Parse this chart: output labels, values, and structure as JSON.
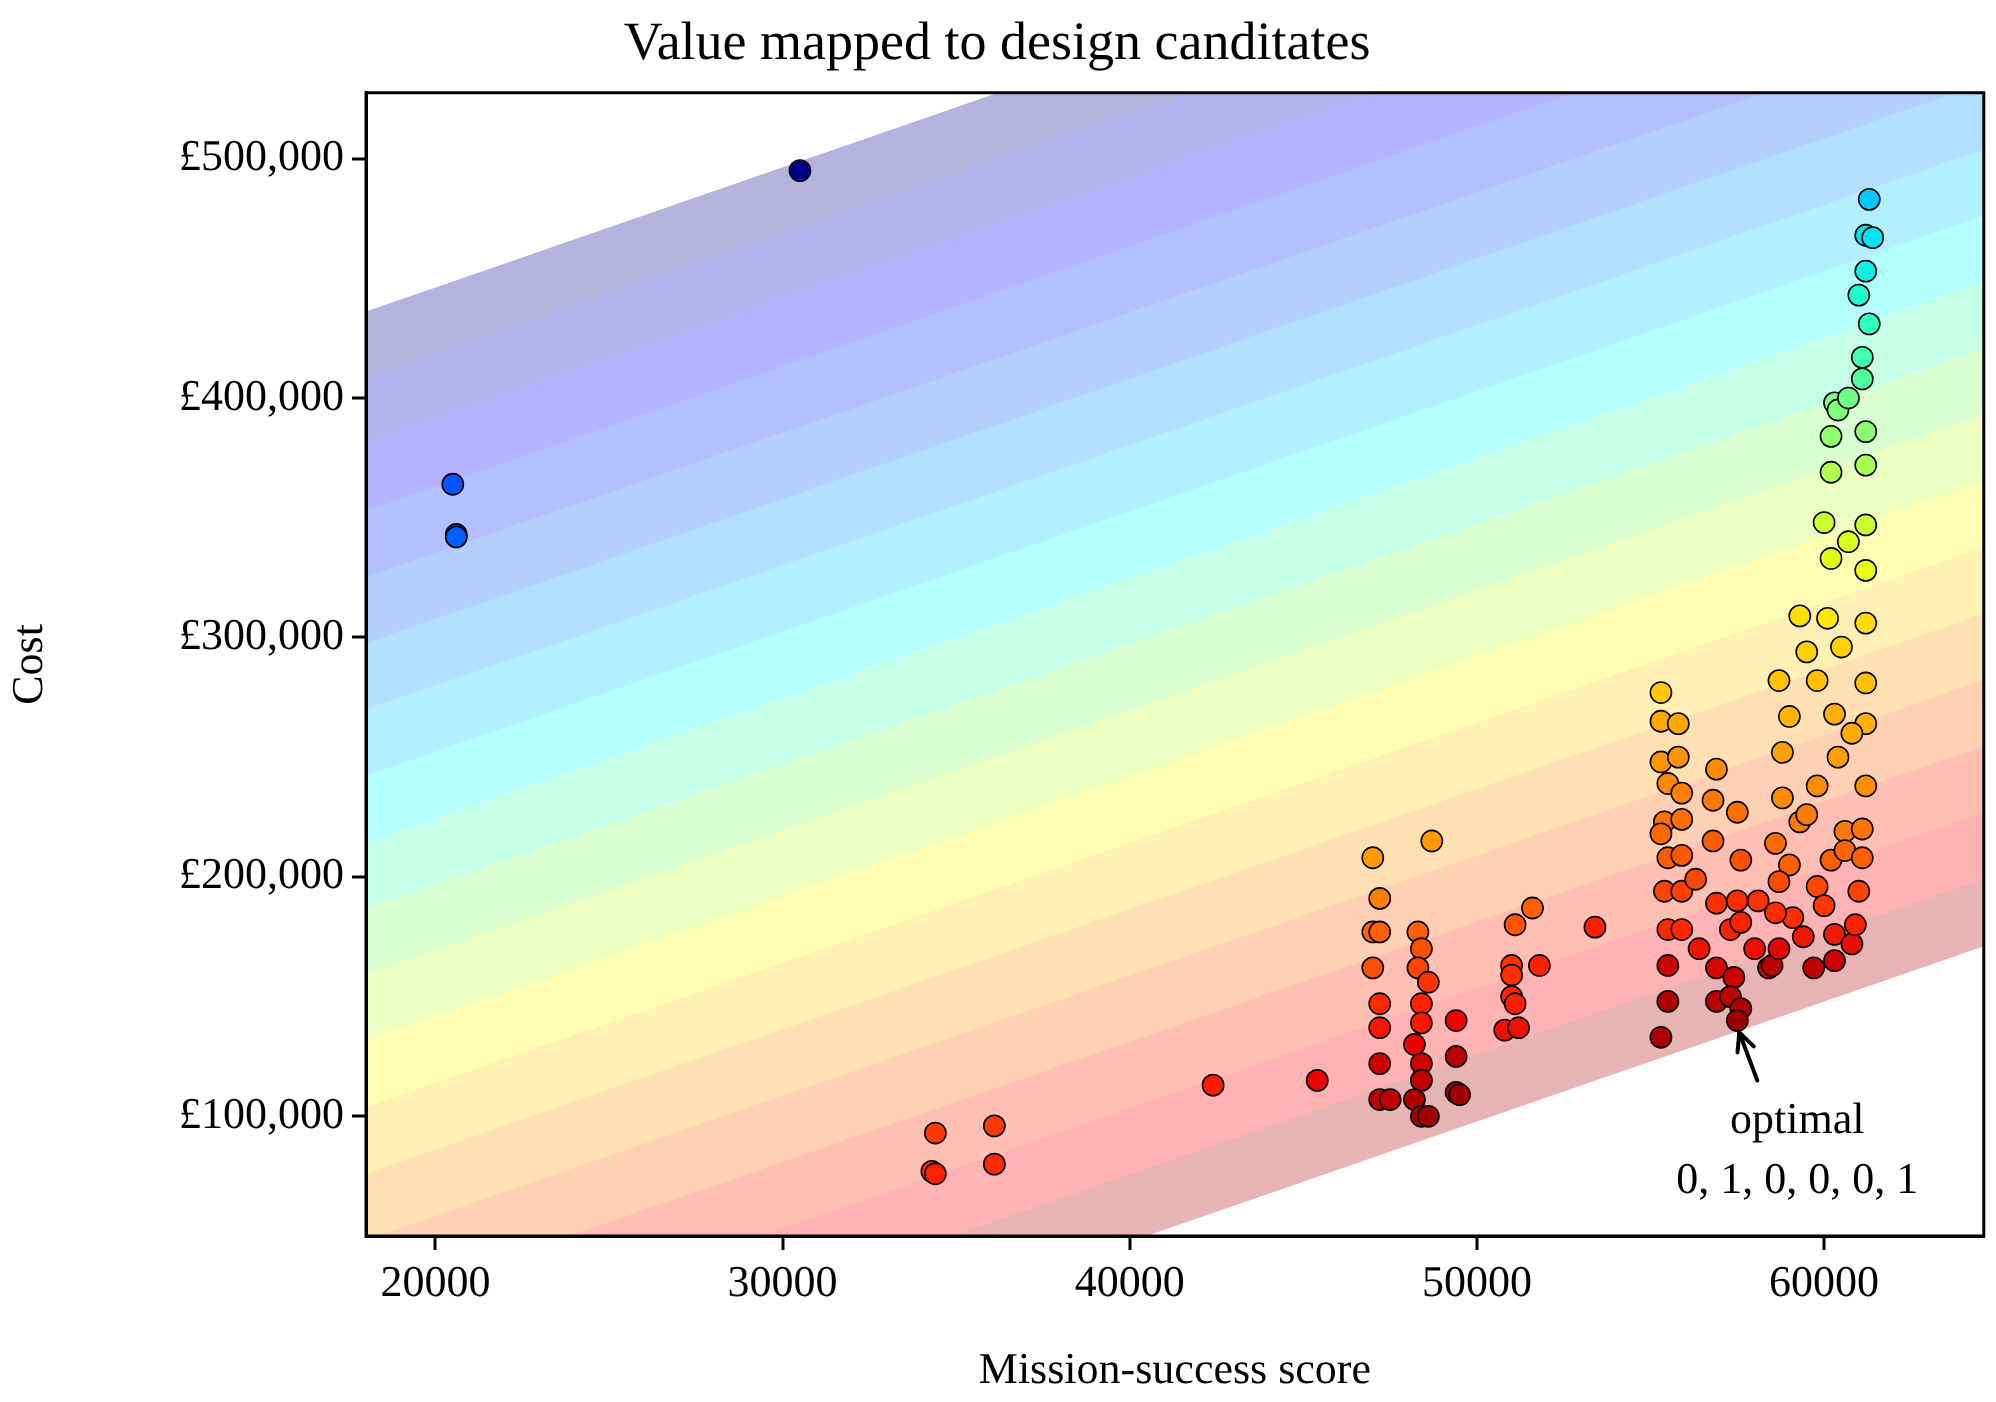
{
  "chart_data": {
    "type": "scatter",
    "title": "Value mapped to design canditates",
    "xlabel": "Mission-success score",
    "ylabel": "Cost",
    "xlim": [
      18000,
      64600
    ],
    "xticks": [
      20000,
      30000,
      40000,
      50000,
      60000
    ],
    "ylim": [
      50000,
      527500
    ],
    "yticks": [
      {
        "value": 100000,
        "label": "£100,000"
      },
      {
        "value": 200000,
        "label": "£200,000"
      },
      {
        "value": 300000,
        "label": "£300,000"
      },
      {
        "value": 400000,
        "label": "£400,000"
      },
      {
        "value": 500000,
        "label": "£500,000"
      }
    ],
    "grid": false,
    "legend": false,
    "marker": "circle",
    "annotations": [
      {
        "text": "optimal\n0, 1, 0, 0, 0, 1",
        "x": 57500,
        "y": 140000
      }
    ],
    "x": [
      30500,
      20500,
      20600,
      20600,
      34400,
      34300,
      34400,
      36100,
      36100,
      42400,
      45400,
      47000,
      48700,
      47200,
      47000,
      47200,
      47000,
      47200,
      47200,
      47200,
      47200,
      47500,
      48300,
      48400,
      48300,
      48600,
      48400,
      48400,
      48200,
      48400,
      48400,
      48200,
      48400,
      48600,
      49400,
      49400,
      49400,
      49500,
      51100,
      51600,
      51000,
      51000,
      51000,
      51100,
      50800,
      51200,
      51800,
      53400,
      55300,
      55300,
      55800,
      55300,
      55800,
      56900,
      55500,
      55900,
      56800,
      57500,
      55400,
      55900,
      55300,
      55500,
      55900,
      56800,
      57600,
      55400,
      55900,
      56300,
      55500,
      55900,
      56900,
      57500,
      58100,
      56400,
      57300,
      57600,
      55500,
      56900,
      57400,
      58000,
      58400,
      55500,
      56900,
      57300,
      57600,
      55300,
      57500,
      61300,
      61200,
      61400,
      61200,
      61000,
      61300,
      61100,
      61100,
      60300,
      60400,
      60200,
      61200,
      60200,
      61200,
      60000,
      61200,
      60200,
      61200,
      59300,
      60100,
      61200,
      59500,
      60500,
      58700,
      61200,
      59000,
      60300,
      61200,
      58800,
      60400,
      61200,
      58800,
      59800,
      59300,
      60600,
      58600,
      61100,
      59000,
      60200,
      60600,
      61100,
      58700,
      59800,
      61000,
      59100,
      59400,
      60300,
      60800,
      58600,
      58500,
      59700,
      60300,
      58700,
      60900,
      60000,
      59500,
      60800,
      59800,
      60700,
      60700
    ],
    "values": [
      495000,
      364000,
      343000,
      342000,
      93000,
      77000,
      76000,
      96000,
      80000,
      113000,
      115000,
      208000,
      215000,
      191000,
      177000,
      177000,
      162000,
      147000,
      137000,
      122000,
      107000,
      107000,
      177000,
      170000,
      162000,
      156000,
      147000,
      139000,
      130000,
      122000,
      115000,
      107000,
      100000,
      100000,
      140000,
      125000,
      110000,
      109000,
      180000,
      187000,
      163000,
      159000,
      150000,
      147000,
      136000,
      137000,
      163000,
      179000,
      277000,
      265000,
      264000,
      248000,
      250000,
      245000,
      239000,
      235000,
      232000,
      227000,
      223000,
      224000,
      218000,
      208000,
      209000,
      215000,
      207000,
      194000,
      194000,
      199000,
      178000,
      178000,
      189000,
      190000,
      190000,
      170000,
      178000,
      181000,
      163000,
      162000,
      158000,
      170000,
      162000,
      148000,
      148000,
      150000,
      145000,
      133000,
      140000,
      483000,
      468000,
      467000,
      453000,
      443000,
      431000,
      417000,
      408000,
      398000,
      395000,
      384000,
      386000,
      369000,
      372000,
      348000,
      347000,
      333000,
      328000,
      309000,
      308000,
      306000,
      294000,
      296000,
      282000,
      281000,
      267000,
      268000,
      264000,
      252000,
      250000,
      238000,
      233000,
      238000,
      223000,
      219000,
      214000,
      220000,
      205000,
      207000,
      211000,
      208000,
      198000,
      196000,
      194000,
      183000,
      175000,
      176000,
      172000,
      185000,
      163000,
      162000,
      165000,
      170000,
      180000,
      188000,
      226000,
      260000,
      282000,
      340000,
      400000
    ],
    "colors": [
      "#00008b",
      "#0055ff",
      "#0066ff",
      "#0060ff",
      "#ff3a00",
      "#ff2a00",
      "#ff2000",
      "#ff3a00",
      "#ff2a00",
      "#ff1a00",
      "#ee0000",
      "#ff9a00",
      "#ff9a00",
      "#ff8000",
      "#ff6600",
      "#ff6000",
      "#ff5000",
      "#ff2a00",
      "#ff1500",
      "#d00000",
      "#bb0000",
      "#bb0000",
      "#ff6000",
      "#ff5000",
      "#ff4400",
      "#ff3300",
      "#ff2200",
      "#ff1500",
      "#ee0000",
      "#cc0000",
      "#bb0000",
      "#aa0000",
      "#a00000",
      "#a00000",
      "#ee0000",
      "#bb0000",
      "#a00000",
      "#a00000",
      "#ff5500",
      "#ff6000",
      "#ff3300",
      "#ff3000",
      "#ff2500",
      "#ff2000",
      "#ee1000",
      "#ee1000",
      "#ff2200",
      "#ff2000",
      "#ffc800",
      "#ffa800",
      "#ffa800",
      "#ff9400",
      "#ff9400",
      "#ff8c00",
      "#ff8800",
      "#ff8000",
      "#ff7800",
      "#ff7000",
      "#ff7000",
      "#ff6c00",
      "#ff6800",
      "#ff5c00",
      "#ff5800",
      "#ff5c00",
      "#ff5000",
      "#ff4400",
      "#ff4000",
      "#ff4800",
      "#ff2800",
      "#ff2800",
      "#ff3000",
      "#ff3000",
      "#ff3300",
      "#ee1500",
      "#ff2000",
      "#ff2200",
      "#cc0000",
      "#dd0000",
      "#cc0000",
      "#ee1000",
      "#cc0000",
      "#b00000",
      "#bb0000",
      "#bb0000",
      "#aa0000",
      "#aa0000",
      "#990000",
      "#00c8ff",
      "#00e4f0",
      "#00e4f0",
      "#10f0e0",
      "#20f8d0",
      "#30ffc0",
      "#40ffb0",
      "#50ff9c",
      "#80ff80",
      "#80ff7c",
      "#90ff70",
      "#88ff70",
      "#b0ff50",
      "#a8ff50",
      "#ccff30",
      "#c8ff30",
      "#e0ff18",
      "#e8ff10",
      "#ffe000",
      "#ffe800",
      "#ffdc00",
      "#ffd000",
      "#ffd000",
      "#ffc000",
      "#ffc000",
      "#ffb400",
      "#ffb000",
      "#ffb000",
      "#ffa000",
      "#ffa000",
      "#ff9000",
      "#ff8c00",
      "#ff8c00",
      "#ff7c00",
      "#ff7800",
      "#ff6c00",
      "#ff7400",
      "#ff6000",
      "#ff6000",
      "#ff6400",
      "#ff6000",
      "#ff4c00",
      "#ff4800",
      "#ff4400",
      "#ff3000",
      "#ee1800",
      "#f01c00",
      "#e81000",
      "#ff2c00",
      "#bb0000",
      "#c00000",
      "#cc0000",
      "#dd0800",
      "#ff2000",
      "#ff3800",
      "#ff7c00",
      "#ffac00",
      "#ffc000",
      "#d8ff20",
      "#70ff88"
    ]
  }
}
